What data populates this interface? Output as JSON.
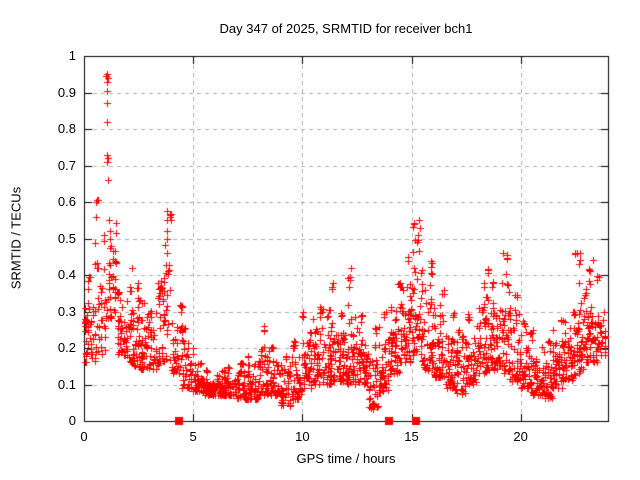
{
  "chart_data": {
    "type": "scatter",
    "title": "Day 347 of 2025, SRMTID for receiver bch1",
    "xlabel": "GPS time / hours",
    "ylabel": "SRMTID / TECUs",
    "xlim": [
      0,
      24
    ],
    "ylim": [
      0,
      1
    ],
    "xticks": {
      "values": [
        0,
        5,
        10,
        15,
        20
      ],
      "labels": [
        "0",
        "5",
        "10",
        "15",
        "20"
      ]
    },
    "yticks": {
      "values": [
        0,
        0.1,
        0.2,
        0.3,
        0.4,
        0.5,
        0.6,
        0.7,
        0.8,
        0.9,
        1
      ],
      "labels": [
        "0",
        "0.1",
        "0.2",
        "0.3",
        "0.4",
        "0.5",
        "0.6",
        "0.7",
        "0.8",
        "0.9",
        "1"
      ]
    },
    "grid": true,
    "legend": false,
    "marker": {
      "shape": "plus",
      "color": "#ff0000",
      "size": 7
    },
    "colors": {
      "marker": "#ff0000",
      "grid": "#b0b0b0",
      "axis": "#000000",
      "background": "#ffffff"
    },
    "render_seed": 42,
    "envelope_bins_format": [
      "hour_start(width 0.5h)",
      "y_min",
      "y_max",
      "point_count"
    ],
    "envelope_bins": [
      [
        0.0,
        0.16,
        0.4,
        45
      ],
      [
        0.5,
        0.18,
        0.62,
        40
      ],
      [
        1.0,
        0.28,
        0.56,
        40
      ],
      [
        1.5,
        0.18,
        0.36,
        42
      ],
      [
        2.0,
        0.15,
        0.38,
        45
      ],
      [
        2.5,
        0.14,
        0.34,
        45
      ],
      [
        3.0,
        0.14,
        0.38,
        42
      ],
      [
        3.5,
        0.16,
        0.58,
        45
      ],
      [
        4.0,
        0.13,
        0.33,
        42
      ],
      [
        4.5,
        0.09,
        0.26,
        42
      ],
      [
        5.0,
        0.08,
        0.16,
        45
      ],
      [
        5.5,
        0.07,
        0.14,
        45
      ],
      [
        6.0,
        0.07,
        0.14,
        45
      ],
      [
        6.5,
        0.07,
        0.15,
        45
      ],
      [
        7.0,
        0.06,
        0.16,
        45
      ],
      [
        7.5,
        0.06,
        0.18,
        45
      ],
      [
        8.0,
        0.07,
        0.26,
        45
      ],
      [
        8.5,
        0.07,
        0.21,
        45
      ],
      [
        9.0,
        0.04,
        0.18,
        45
      ],
      [
        9.5,
        0.06,
        0.22,
        45
      ],
      [
        10.0,
        0.09,
        0.3,
        50
      ],
      [
        10.5,
        0.1,
        0.32,
        50
      ],
      [
        11.0,
        0.1,
        0.38,
        50
      ],
      [
        11.5,
        0.11,
        0.3,
        50
      ],
      [
        12.0,
        0.1,
        0.41,
        50
      ],
      [
        12.5,
        0.1,
        0.3,
        50
      ],
      [
        13.0,
        0.03,
        0.26,
        45
      ],
      [
        13.5,
        0.08,
        0.3,
        45
      ],
      [
        14.0,
        0.13,
        0.38,
        50
      ],
      [
        14.5,
        0.16,
        0.45,
        50
      ],
      [
        15.0,
        0.18,
        0.55,
        50
      ],
      [
        15.5,
        0.14,
        0.44,
        50
      ],
      [
        16.0,
        0.12,
        0.36,
        50
      ],
      [
        16.5,
        0.09,
        0.3,
        45
      ],
      [
        17.0,
        0.07,
        0.26,
        45
      ],
      [
        17.5,
        0.1,
        0.3,
        45
      ],
      [
        18.0,
        0.13,
        0.42,
        50
      ],
      [
        18.5,
        0.14,
        0.38,
        50
      ],
      [
        19.0,
        0.13,
        0.47,
        50
      ],
      [
        19.5,
        0.11,
        0.35,
        45
      ],
      [
        20.0,
        0.09,
        0.28,
        45
      ],
      [
        20.5,
        0.07,
        0.25,
        45
      ],
      [
        21.0,
        0.06,
        0.22,
        45
      ],
      [
        21.5,
        0.09,
        0.28,
        45
      ],
      [
        22.0,
        0.11,
        0.3,
        50
      ],
      [
        22.5,
        0.13,
        0.47,
        50
      ],
      [
        23.0,
        0.16,
        0.42,
        50
      ],
      [
        23.5,
        0.18,
        0.4,
        30
      ]
    ],
    "outlier_points": [
      [
        0.55,
        0.6
      ],
      [
        0.57,
        0.56
      ],
      [
        1.02,
        0.945
      ],
      [
        1.06,
        0.95
      ],
      [
        1.1,
        0.94
      ],
      [
        1.07,
        0.93
      ],
      [
        1.04,
        0.905
      ],
      [
        1.05,
        0.87
      ],
      [
        1.05,
        0.82
      ],
      [
        1.06,
        0.73
      ],
      [
        1.08,
        0.72
      ],
      [
        1.07,
        0.71
      ],
      [
        1.09,
        0.66
      ],
      [
        1.15,
        0.55
      ],
      [
        1.18,
        0.52
      ],
      [
        1.2,
        0.5
      ],
      [
        1.22,
        0.48
      ],
      [
        2.2,
        0.42
      ],
      [
        3.78,
        0.575
      ],
      [
        3.8,
        0.55
      ],
      [
        3.82,
        0.52
      ],
      [
        3.79,
        0.5
      ],
      [
        12.25,
        0.42
      ],
      [
        15.35,
        0.55
      ],
      [
        15.4,
        0.53
      ],
      [
        15.3,
        0.51
      ],
      [
        19.2,
        0.46
      ],
      [
        22.7,
        0.46
      ],
      [
        22.72,
        0.44
      ],
      [
        22.68,
        0.43
      ],
      [
        23.3,
        0.44
      ]
    ],
    "zero_markers_hours": [
      4.35,
      13.95,
      15.2
    ]
  }
}
